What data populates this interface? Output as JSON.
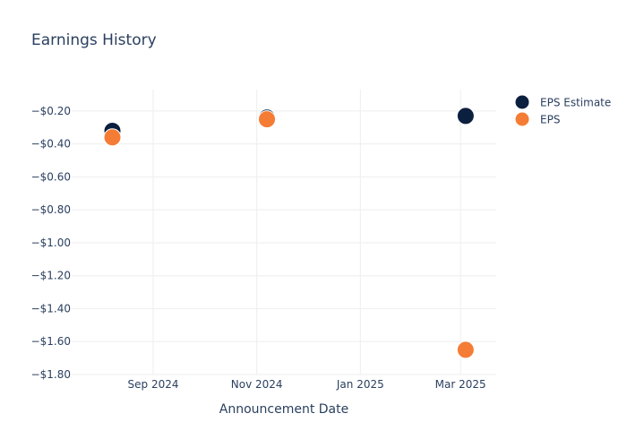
{
  "chart_data": {
    "type": "scatter",
    "title": "Earnings History",
    "xlabel": "Announcement Date",
    "ylabel": "",
    "x_ticks": [
      {
        "date": "2024-09-01",
        "label": "Sep 2024"
      },
      {
        "date": "2024-11-01",
        "label": "Nov 2024"
      },
      {
        "date": "2025-01-01",
        "label": "Jan 2025"
      },
      {
        "date": "2025-03-01",
        "label": "Mar 2025"
      }
    ],
    "xlim": [
      "2024-07-15",
      "2025-03-22"
    ],
    "y_ticks": [
      -0.2,
      -0.4,
      -0.6,
      -0.8,
      -1.0,
      -1.2,
      -1.4,
      -1.6,
      -1.8
    ],
    "y_tick_labels": [
      "−$0.20",
      "−$0.40",
      "−$0.60",
      "−$0.80",
      "−$1.00",
      "−$1.20",
      "−$1.40",
      "−$1.60",
      "−$1.80"
    ],
    "ylim": [
      -1.8,
      -0.07
    ],
    "grid": true,
    "legend_position": "top-right",
    "series": [
      {
        "name": "EPS Estimate",
        "color": "#0b1f3f",
        "points": [
          {
            "x": "2024-08-08",
            "y": -0.32
          },
          {
            "x": "2024-11-07",
            "y": -0.24
          },
          {
            "x": "2025-03-04",
            "y": -0.23
          }
        ]
      },
      {
        "name": "EPS",
        "color": "#f57c35",
        "points": [
          {
            "x": "2024-08-08",
            "y": -0.36
          },
          {
            "x": "2024-11-07",
            "y": -0.25
          },
          {
            "x": "2025-03-04",
            "y": -1.65
          }
        ]
      }
    ]
  }
}
